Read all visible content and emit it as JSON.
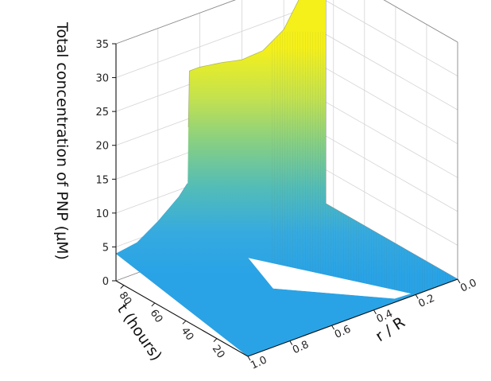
{
  "chart_data": {
    "type": "surface3d",
    "zlabel": "Total concentration of PNP  (μM)",
    "tlabel": "t (hours)",
    "rlabel": "r / R",
    "z_ticks": [
      "0",
      "5",
      "10",
      "15",
      "20",
      "25",
      "30",
      "35"
    ],
    "t_ticks": [
      "20",
      "40",
      "60",
      "80"
    ],
    "r_ticks": [
      "0.0",
      "0.2",
      "0.4",
      "0.6",
      "0.8",
      "1.0"
    ],
    "zlim": [
      0,
      35
    ],
    "tlim": [
      0,
      85
    ],
    "rlim": [
      0,
      1
    ],
    "colormap": [
      "#29a3e6",
      "#3fb0cf",
      "#5fc2a4",
      "#8fd37a",
      "#c6e24c",
      "#f3f01c"
    ],
    "profile_at_max_t": [
      {
        "r": 0.0,
        "z": 31
      },
      {
        "r": 0.1,
        "z": 33
      },
      {
        "r": 0.2,
        "z": 28
      },
      {
        "r": 0.3,
        "z": 26
      },
      {
        "r": 0.4,
        "z": 25.8
      },
      {
        "r": 0.5,
        "z": 26.5
      },
      {
        "r": 0.6,
        "z": 27
      },
      {
        "r": 0.65,
        "z": 27
      },
      {
        "r": 0.66,
        "z": 10.5
      },
      {
        "r": 0.7,
        "z": 9
      },
      {
        "r": 0.8,
        "z": 6.5
      },
      {
        "r": 0.9,
        "z": 4.5
      },
      {
        "r": 1.0,
        "z": 4
      }
    ]
  }
}
